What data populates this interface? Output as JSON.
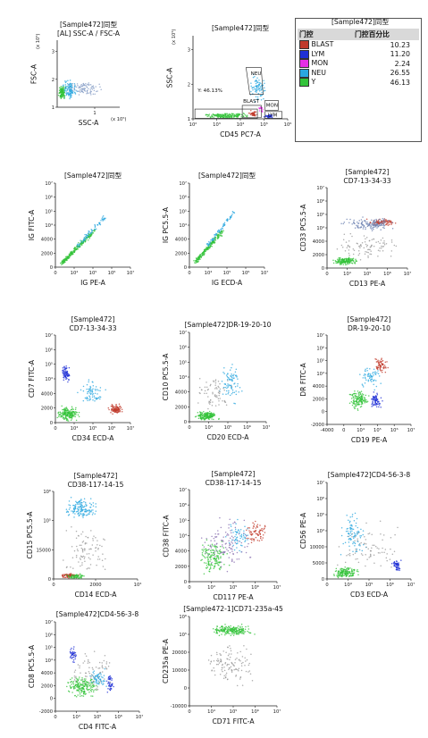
{
  "legend": {
    "title": "[Sample472]同型",
    "header_gate": "门控",
    "header_pct": "门控百分比",
    "rows": [
      {
        "name": "BLAST",
        "value": "10.23",
        "color": "#c0392b"
      },
      {
        "name": "LYM",
        "value": "11.20",
        "color": "#1f2fd6"
      },
      {
        "name": "MON",
        "value": "2.24",
        "color": "#e62ee6"
      },
      {
        "name": "NEU",
        "value": "26.55",
        "color": "#2aa7e0"
      },
      {
        "name": "Y",
        "value": "46.13",
        "color": "#33c33a"
      }
    ]
  },
  "chart_data": [
    {
      "type": "scatter",
      "title": "[Sample472]同型",
      "subtitle": "[AL] SSC-A / FSC-A",
      "xlabel": "SSC-A",
      "ylabel": "FSC-A",
      "x_scale_label": "(x 10⁵)",
      "y_scale_label": "(x 10⁵)",
      "xticks": [
        "1"
      ],
      "yticks": [
        "1",
        "2",
        "3"
      ],
      "xlim": [
        0,
        1.7
      ],
      "ylim": [
        0,
        3.4
      ],
      "populations": [
        {
          "color": "#2aa7e0",
          "x": [
            0.05,
            0.6
          ],
          "y": [
            0.3,
            1.5
          ],
          "n": 120
        },
        {
          "color": "#33c33a",
          "x": [
            0.02,
            0.25
          ],
          "y": [
            0.3,
            1.2
          ],
          "n": 110
        },
        {
          "color": "#8aa0c8",
          "x": [
            0.2,
            1.3
          ],
          "y": [
            0.5,
            1.4
          ],
          "n": 90
        }
      ]
    },
    {
      "type": "scatter",
      "title": "[Sample472]同型",
      "xlabel": "CD45 PC7-A",
      "ylabel": "SSC-A",
      "y_scale_label": "(x 10⁵)",
      "xticks": [
        "10²",
        "10³",
        "10⁴",
        "10⁵",
        "10⁶"
      ],
      "yticks": [
        "1",
        "2",
        "3"
      ],
      "xlim": [
        0,
        5
      ],
      "ylim": [
        0,
        3.4
      ],
      "gates": [
        "NEU",
        "MON",
        "BLAST",
        "LYM",
        "Y: 46.13%"
      ],
      "populations": [
        {
          "color": "#33c33a",
          "x": [
            0.3,
            3.4
          ],
          "y": [
            0.0,
            0.25
          ],
          "n": 170
        },
        {
          "color": "#2aa7e0",
          "x": [
            2.9,
            4.0
          ],
          "y": [
            0.6,
            1.9
          ],
          "n": 80
        },
        {
          "color": "#c0392b",
          "x": [
            2.9,
            3.4
          ],
          "y": [
            0.05,
            0.35
          ],
          "n": 40
        },
        {
          "color": "#1f2fd6",
          "x": [
            3.7,
            4.3
          ],
          "y": [
            0.0,
            0.2
          ],
          "n": 35
        },
        {
          "color": "#e62ee6",
          "x": [
            3.4,
            3.8
          ],
          "y": [
            0.25,
            0.6
          ],
          "n": 15
        }
      ]
    },
    {
      "type": "scatter",
      "title": "[Sample472]同型",
      "xlabel": "IG PE-A",
      "ylabel": "IG FITC-A",
      "xticks": [
        "0",
        "10⁴",
        "10⁵",
        "10⁶",
        "10⁷"
      ],
      "yticks": [
        "0",
        "2000",
        "4000",
        "10⁴",
        "10⁵",
        "10⁶",
        "10⁷"
      ],
      "xlim": [
        0,
        5
      ],
      "ylim": [
        0,
        7
      ],
      "trend": "diagonal",
      "populations": [
        {
          "color": "#33c33a",
          "x": [
            0.4,
            2.6
          ],
          "y": [
            0.3,
            3.0
          ],
          "n": 220
        },
        {
          "color": "#2aa7e0",
          "x": [
            1.5,
            3.3
          ],
          "y": [
            1.8,
            4.2
          ],
          "n": 70
        }
      ]
    },
    {
      "type": "scatter",
      "title": "[Sample472]同型",
      "xlabel": "IG ECD-A",
      "ylabel": "IG PC5.5-A",
      "xticks": [
        "0",
        "10⁴",
        "10⁵",
        "10⁶",
        "10⁷"
      ],
      "yticks": [
        "0",
        "2000",
        "4000",
        "10⁴",
        "10⁵",
        "10⁶",
        "10⁷"
      ],
      "xlim": [
        0,
        5
      ],
      "ylim": [
        0,
        7
      ],
      "trend": "diagonal",
      "populations": [
        {
          "color": "#33c33a",
          "x": [
            0.4,
            2.2
          ],
          "y": [
            0.4,
            3.0
          ],
          "n": 200
        },
        {
          "color": "#2aa7e0",
          "x": [
            1.2,
            3.0
          ],
          "y": [
            1.8,
            4.6
          ],
          "n": 70
        }
      ]
    },
    {
      "type": "scatter",
      "title": "[Sample472]",
      "subtitle": "CD7-13-34-33",
      "xlabel": "CD13 PE-A",
      "ylabel": "CD33 PC5.5-A",
      "xticks": [
        "0",
        "10⁴",
        "10⁵",
        "10⁶",
        "10⁷"
      ],
      "yticks": [
        "0",
        "2000",
        "4000",
        "10⁴",
        "10⁵",
        "10⁶",
        "10⁷"
      ],
      "xlim": [
        0,
        5
      ],
      "ylim": [
        0,
        7
      ],
      "populations": [
        {
          "color": "#33c33a",
          "x": [
            0.3,
            2.0
          ],
          "y": [
            0.2,
            1.0
          ],
          "n": 160
        },
        {
          "color": "#c0392b",
          "x": [
            2.3,
            4.6
          ],
          "y": [
            3.6,
            4.4
          ],
          "n": 80
        },
        {
          "color": "#6a7fb0",
          "x": [
            0.5,
            4.8
          ],
          "y": [
            3.1,
            4.6
          ],
          "n": 130
        },
        {
          "color": "#999999",
          "x": [
            0.0,
            5.0
          ],
          "y": [
            0.4,
            3.4
          ],
          "n": 90
        }
      ]
    },
    {
      "type": "scatter",
      "title": "[Sample472]",
      "subtitle": "CD7-13-34-33",
      "xlabel": "CD34 ECD-A",
      "ylabel": "CD7 FITC-A",
      "xticks": [
        "0",
        "10⁴",
        "10⁵",
        "10⁶",
        "10⁷"
      ],
      "yticks": [
        "0",
        "2000",
        "4000",
        "10⁴",
        "10⁵",
        "10⁶",
        "10⁷"
      ],
      "xlim": [
        0,
        5
      ],
      "ylim": [
        0,
        7
      ],
      "populations": [
        {
          "color": "#1f2fd6",
          "x": [
            0.3,
            1.1
          ],
          "y": [
            3.0,
            5.0
          ],
          "n": 70
        },
        {
          "color": "#33c33a",
          "x": [
            0.0,
            1.8
          ],
          "y": [
            0.0,
            1.4
          ],
          "n": 190
        },
        {
          "color": "#c0392b",
          "x": [
            3.4,
            4.6
          ],
          "y": [
            0.6,
            1.6
          ],
          "n": 90
        },
        {
          "color": "#2aa7e0",
          "x": [
            1.4,
            3.4
          ],
          "y": [
            1.0,
            3.6
          ],
          "n": 70
        }
      ]
    },
    {
      "type": "scatter",
      "title": "[Sample472]DR-19-20-10",
      "xlabel": "CD20 ECD-A",
      "ylabel": "CD10 PC5.5-A",
      "xticks": [
        "0",
        "10⁴",
        "10⁵",
        "10⁶",
        "10⁷"
      ],
      "yticks": [
        "0",
        "2000",
        "4000",
        "10⁴",
        "10⁵",
        "10⁶",
        "10⁷"
      ],
      "xlim": [
        0,
        5
      ],
      "ylim": [
        0,
        7
      ],
      "populations": [
        {
          "color": "#33c33a",
          "x": [
            0.3,
            2.0
          ],
          "y": [
            0.0,
            0.9
          ],
          "n": 170
        },
        {
          "color": "#2aa7e0",
          "x": [
            1.8,
            3.6
          ],
          "y": [
            1.0,
            5.0
          ],
          "n": 80
        },
        {
          "color": "#999999",
          "x": [
            0.2,
            3.0
          ],
          "y": [
            0.5,
            4.0
          ],
          "n": 70
        }
      ]
    },
    {
      "type": "scatter",
      "title": "[Sample472]",
      "subtitle": "DR-19-20-10",
      "xlabel": "CD19 PE-A",
      "ylabel": "DR FITC-A",
      "xticks": [
        "-4000",
        "0",
        "10⁴",
        "10⁵",
        "10⁶",
        "10⁷"
      ],
      "yticks": [
        "-2000",
        "0",
        "2000",
        "4000",
        "10⁴",
        "10⁵",
        "10⁶",
        "10⁷"
      ],
      "xlim": [
        -1,
        5
      ],
      "ylim": [
        -1,
        7
      ],
      "populations": [
        {
          "color": "#33c33a",
          "x": [
            0.4,
            2.2
          ],
          "y": [
            0.2,
            2.2
          ],
          "n": 140
        },
        {
          "color": "#1f2fd6",
          "x": [
            2.0,
            3.0
          ],
          "y": [
            0.2,
            2.0
          ],
          "n": 70
        },
        {
          "color": "#c0392b",
          "x": [
            2.2,
            3.6
          ],
          "y": [
            3.4,
            5.2
          ],
          "n": 60
        },
        {
          "color": "#2aa7e0",
          "x": [
            1.0,
            3.2
          ],
          "y": [
            1.8,
            4.8
          ],
          "n": 60
        }
      ]
    },
    {
      "type": "scatter",
      "title": "[Sample472]",
      "subtitle": "CD38-117-14-15",
      "xlabel": "CD14 ECD-A",
      "ylabel": "CD15 PC5.5-A",
      "xticks": [
        "0",
        "2000",
        "10⁴"
      ],
      "yticks": [
        "0",
        "15000",
        "10⁵",
        "10⁶"
      ],
      "xlim": [
        0,
        5
      ],
      "ylim": [
        0,
        4
      ],
      "populations": [
        {
          "color": "#2aa7e0",
          "x": [
            0.5,
            2.8
          ],
          "y": [
            2.6,
            3.8
          ],
          "n": 140
        },
        {
          "color": "#c0392b",
          "x": [
            0.2,
            1.6
          ],
          "y": [
            0.0,
            0.3
          ],
          "n": 70
        },
        {
          "color": "#33c33a",
          "x": [
            0.6,
            2.0
          ],
          "y": [
            0.0,
            0.25
          ],
          "n": 60
        },
        {
          "color": "#999999",
          "x": [
            0.0,
            4.0
          ],
          "y": [
            0.0,
            2.6
          ],
          "n": 90
        }
      ]
    },
    {
      "type": "scatter",
      "title": "[Sample472]",
      "subtitle": "CD38-117-14-15",
      "xlabel": "CD117 PE-A",
      "ylabel": "CD38 FITC-A",
      "xticks": [
        "0",
        "10⁴",
        "10⁵",
        "10⁶",
        "10⁷"
      ],
      "yticks": [
        "0",
        "2000",
        "4000",
        "10⁴",
        "10⁵",
        "10⁶",
        "10⁷"
      ],
      "xlim": [
        0,
        5
      ],
      "ylim": [
        0,
        7
      ],
      "populations": [
        {
          "color": "#33c33a",
          "x": [
            0.3,
            2.4
          ],
          "y": [
            0.3,
            3.5
          ],
          "n": 140
        },
        {
          "color": "#2aa7e0",
          "x": [
            2.0,
            3.6
          ],
          "y": [
            1.8,
            5.0
          ],
          "n": 60
        },
        {
          "color": "#c0392b",
          "x": [
            3.0,
            4.6
          ],
          "y": [
            2.6,
            5.0
          ],
          "n": 70
        },
        {
          "color": "#8a6fb0",
          "x": [
            0.3,
            4.0
          ],
          "y": [
            0.5,
            5.4
          ],
          "n": 110
        }
      ]
    },
    {
      "type": "scatter",
      "title": "[Sample472]CD4-56-3-8",
      "xlabel": "CD3 ECD-A",
      "ylabel": "CD56 PE-A",
      "xticks": [
        "0",
        "10⁴",
        "10⁵",
        "10⁶",
        "10⁷"
      ],
      "yticks": [
        "0",
        "5000",
        "10000",
        "10⁴",
        "10⁵",
        "10⁶",
        "10⁷"
      ],
      "xlim": [
        0,
        5
      ],
      "ylim": [
        0,
        7
      ],
      "populations": [
        {
          "color": "#2aa7e0",
          "x": [
            0.6,
            2.6
          ],
          "y": [
            1.2,
            5.2
          ],
          "n": 90
        },
        {
          "color": "#33c33a",
          "x": [
            0.2,
            2.0
          ],
          "y": [
            0.0,
            1.0
          ],
          "n": 150
        },
        {
          "color": "#1f2fd6",
          "x": [
            3.8,
            4.5
          ],
          "y": [
            0.3,
            1.6
          ],
          "n": 50
        },
        {
          "color": "#999999",
          "x": [
            0.0,
            4.6
          ],
          "y": [
            0.0,
            4.5
          ],
          "n": 80
        }
      ]
    },
    {
      "type": "scatter",
      "title": "[Sample472]CD4-56-3-8",
      "xlabel": "CD4 FITC-A",
      "ylabel": "CD8 PC5.5-A",
      "xticks": [
        "0",
        "10⁴",
        "10⁵",
        "10⁶",
        "10⁷"
      ],
      "yticks": [
        "-2000",
        "0",
        "2000",
        "4000",
        "10⁴",
        "10⁵",
        "10⁶",
        "10⁷"
      ],
      "xlim": [
        -0.5,
        5
      ],
      "ylim": [
        -1,
        7
      ],
      "populations": [
        {
          "color": "#1f2fd6",
          "x": [
            0.3,
            1.0
          ],
          "y": [
            3.0,
            5.0
          ],
          "n": 40
        },
        {
          "color": "#1f2fd6",
          "x": [
            2.8,
            3.4
          ],
          "y": [
            0.5,
            2.4
          ],
          "n": 40
        },
        {
          "color": "#33c33a",
          "x": [
            0.0,
            2.6
          ],
          "y": [
            0.0,
            2.4
          ],
          "n": 180
        },
        {
          "color": "#2aa7e0",
          "x": [
            1.6,
            3.0
          ],
          "y": [
            0.8,
            3.0
          ],
          "n": 60
        },
        {
          "color": "#999999",
          "x": [
            0.0,
            4.0
          ],
          "y": [
            0.0,
            5.6
          ],
          "n": 70
        }
      ]
    },
    {
      "type": "scatter",
      "title": "[Sample472-1]CD71-235a-45",
      "xlabel": "CD71 FITC-A",
      "ylabel": "CD235a PE-A",
      "xticks": [
        "0",
        "10⁴",
        "10⁵",
        "10⁶",
        "10⁷"
      ],
      "yticks": [
        "-10000",
        "0",
        "10000",
        "20000",
        "10⁵",
        "10⁶"
      ],
      "xlim": [
        -0.5,
        5
      ],
      "ylim": [
        -1,
        5.5
      ],
      "populations": [
        {
          "color": "#33c33a",
          "x": [
            0.5,
            3.8
          ],
          "y": [
            4.0,
            5.0
          ],
          "n": 200
        },
        {
          "color": "#999999",
          "x": [
            0.0,
            4.0
          ],
          "y": [
            0.0,
            4.2
          ],
          "n": 120
        }
      ]
    }
  ]
}
